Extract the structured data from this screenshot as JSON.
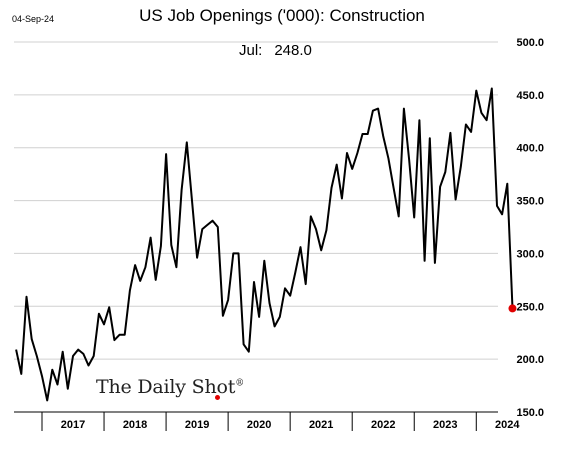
{
  "header": {
    "date": "04-Sep-24",
    "latest_label": "Jul:",
    "latest_value": "248.0"
  },
  "branding": {
    "logo_text": "The Daily Shot",
    "logo_mark": "®"
  },
  "colors": {
    "line": "#000000",
    "last_point": "#e00000",
    "grid": "#d0d0d0"
  },
  "chart_data": {
    "type": "line",
    "title": "US Job Openings ('000): Construction",
    "xlabel": "",
    "ylabel": "",
    "ylim": [
      150,
      500
    ],
    "yticks": [
      "150.0",
      "200.0",
      "250.0",
      "300.0",
      "350.0",
      "400.0",
      "450.0",
      "500.0"
    ],
    "xtick_labels": [
      "2017",
      "2018",
      "2019",
      "2020",
      "2021",
      "2022",
      "2023",
      "2024"
    ],
    "grid": "horizontal",
    "x_start": "2016-08",
    "frequency": "monthly",
    "series": [
      {
        "values": [
          209,
          186,
          259,
          219,
          203,
          184,
          161,
          190,
          176,
          207,
          172,
          203,
          209,
          205,
          194,
          203,
          243,
          233,
          249,
          218,
          223,
          223,
          265,
          289,
          274,
          287,
          315,
          275,
          307,
          394,
          308,
          287,
          360,
          405,
          351,
          296,
          323,
          327,
          331,
          325,
          241,
          256,
          300,
          300,
          214,
          207,
          273,
          240,
          293,
          253,
          231,
          240,
          267,
          260,
          282,
          306,
          271,
          335,
          323,
          303,
          322,
          362,
          384,
          352,
          395,
          380,
          395,
          413,
          413,
          435,
          437,
          411,
          390,
          362,
          335,
          437,
          389,
          334,
          426,
          293,
          409,
          291,
          363,
          377,
          414,
          351,
          382,
          422,
          415,
          454,
          433,
          426,
          456,
          345,
          337,
          366,
          248
        ]
      }
    ],
    "last_point": {
      "x": "2024-07",
      "y": 248.0
    }
  }
}
